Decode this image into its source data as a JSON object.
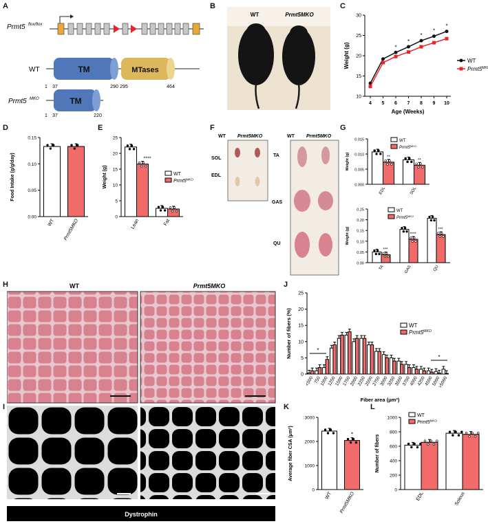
{
  "panels": {
    "A": "A",
    "B": "B",
    "C": "C",
    "D": "D",
    "E": "E",
    "F": "F",
    "G": "G",
    "H": "H",
    "I": "I",
    "J": "J",
    "K": "K",
    "L": "L"
  },
  "panelA": {
    "gene": "Prmt5",
    "gene_sup": "flox/flox",
    "wt_label": "WT",
    "mko_label": "Prmt5",
    "mko_sup": "MKO",
    "tm": "TM",
    "mtases": "MTases",
    "wt_nums": [
      "1",
      "37",
      "290",
      "295",
      "464"
    ],
    "mko_nums": [
      "1",
      "37",
      "220"
    ]
  },
  "panelB": {
    "wt": "WT",
    "mko": "Prmt5MKO"
  },
  "panelF": {
    "wt": "WT",
    "mko": "Prmt5MKO",
    "sol": "SOL",
    "edl": "EDL",
    "ta": "TA",
    "gas": "GAS",
    "qu": "QU"
  },
  "panelH": {
    "wt": "WT",
    "mko": "Prmt5MKO"
  },
  "panelI": {
    "stain": "Dystrophin"
  },
  "colors": {
    "wt": "#ffffff",
    "mko": "#f26b6b",
    "mko_line": "#e8262a",
    "wt_line": "#111111"
  },
  "chart_data": [
    {
      "id": "C",
      "type": "line",
      "xlabel": "Age (Weeks)",
      "ylabel": "Weight (g)",
      "x": [
        4,
        5,
        6,
        7,
        8,
        9,
        10
      ],
      "xlim": [
        4,
        10
      ],
      "ylim": [
        10,
        30
      ],
      "yticks": [
        10,
        15,
        20,
        25,
        30
      ],
      "series": [
        {
          "name": "WT",
          "values": [
            13.2,
            19.2,
            20.8,
            22.2,
            23.7,
            24.8,
            26.0
          ]
        },
        {
          "name": "Prmt5MKO",
          "values": [
            12.4,
            18.3,
            19.8,
            20.9,
            22.2,
            23.2,
            24.2
          ]
        }
      ],
      "annotations": [
        "*",
        "*",
        "*",
        "*",
        "*"
      ],
      "legend": "right"
    },
    {
      "id": "D",
      "type": "bar",
      "ylabel": "Food Intake (g/g/day)",
      "categories": [
        "WT",
        "Prmt5MKO"
      ],
      "values": [
        0.133,
        0.133
      ],
      "ylim": [
        0,
        0.15
      ],
      "yticks": [
        "0.00",
        "0.05",
        "0.10",
        "0.15"
      ]
    },
    {
      "id": "E",
      "type": "bar",
      "ylabel": "Weight (g)",
      "categories": [
        "Lean",
        "Fat"
      ],
      "series": [
        {
          "name": "WT",
          "values": [
            22,
            2.6
          ]
        },
        {
          "name": "Prmt5MKO",
          "values": [
            16.6,
            2.4
          ]
        }
      ],
      "ylim": [
        0,
        25
      ],
      "yticks": [
        "0",
        "5",
        "10",
        "15",
        "20",
        "25"
      ],
      "annotations": [
        "****"
      ],
      "legend": "right"
    },
    {
      "id": "G1",
      "type": "bar",
      "ylabel": "Weight (g)",
      "categories": [
        "EDL",
        "SOL"
      ],
      "series": [
        {
          "name": "WT",
          "values": [
            0.0107,
            0.0081
          ]
        },
        {
          "name": "Prmt5MKO",
          "values": [
            0.0073,
            0.0063
          ]
        }
      ],
      "ylim": [
        0,
        0.015
      ],
      "yticks": [
        "0.000",
        "0.005",
        "0.010",
        "0.015"
      ],
      "annotations": [
        "**",
        "**"
      ],
      "legend": "top-right"
    },
    {
      "id": "G2",
      "type": "bar",
      "ylabel": "Weight (g)",
      "categories": [
        "TA",
        "GAS",
        "QU"
      ],
      "series": [
        {
          "name": "WT",
          "values": [
            0.05,
            0.155,
            0.207
          ]
        },
        {
          "name": "Prmt5MKO",
          "values": [
            0.037,
            0.109,
            0.131
          ]
        }
      ],
      "ylim": [
        0,
        0.25
      ],
      "yticks": [
        "0.00",
        "0.05",
        "0.10",
        "0.15",
        "0.20",
        "0.25"
      ],
      "annotations": [
        "***",
        "****",
        "***"
      ],
      "legend": "top-left"
    },
    {
      "id": "J",
      "type": "bar",
      "ylabel": "Number of fibers (%)",
      "xlabel": "Fiber area (μm²)",
      "categories": [
        "<500",
        "750",
        "1000",
        "1250",
        "1500",
        "1750",
        "2000",
        "2250",
        "2500",
        "2750",
        "3000",
        "3250",
        "3500",
        "3750",
        "4000",
        "4250",
        "4500",
        "5000",
        ">5000"
      ],
      "series": [
        {
          "name": "WT",
          "values": [
            0.3,
            1,
            2,
            8,
            11,
            12,
            10,
            11,
            9,
            7,
            6,
            5,
            4,
            3,
            2,
            1.5,
            1,
            0.8,
            1.5
          ]
        },
        {
          "name": "Prmt5MKO",
          "values": [
            1,
            2,
            4.5,
            9,
            12,
            13,
            11,
            11,
            9,
            7,
            5,
            4,
            3,
            2,
            1.5,
            1,
            0.6,
            0.3,
            0.2
          ]
        }
      ],
      "ylim": [
        0,
        25
      ],
      "yticks": [
        "0",
        "5",
        "10",
        "15",
        "20",
        "25"
      ],
      "annotations": [
        "*",
        "*"
      ],
      "legend": "right"
    },
    {
      "id": "K",
      "type": "bar",
      "ylabel": "Average fiber CSA (μm²)",
      "categories": [
        "WT",
        "Prmt5MKO"
      ],
      "values": [
        2430,
        2040
      ],
      "ylim": [
        0,
        3000
      ],
      "yticks": [
        "0",
        "1000",
        "2000",
        "3000"
      ],
      "annotations": [
        "*"
      ]
    },
    {
      "id": "L",
      "type": "bar",
      "ylabel": "Number of fibers",
      "categories": [
        "EDL",
        "Soleus"
      ],
      "series": [
        {
          "name": "WT",
          "values": [
            615,
            780
          ]
        },
        {
          "name": "Prmt5MKO",
          "values": [
            655,
            765
          ]
        }
      ],
      "ylim": [
        0,
        1000
      ],
      "yticks": [
        "0",
        "200",
        "400",
        "600",
        "800",
        "1000"
      ],
      "legend": "top-left"
    }
  ]
}
